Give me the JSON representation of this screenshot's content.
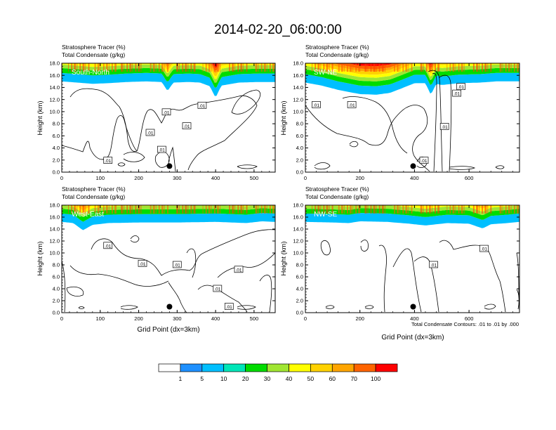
{
  "title": "2014-02-20_06:00:00",
  "chart_data": [
    {
      "type": "heatmap",
      "panel_label": "South-North",
      "header_lines": [
        "Stratosphere Tracer   (%)",
        "Total Condensate   (g/kg)"
      ],
      "ylabel": "Height (km)",
      "xlabel": "",
      "ylim": [
        0,
        18
      ],
      "xlim": [
        0,
        555
      ],
      "xticks": [
        0,
        100,
        200,
        300,
        400,
        500
      ],
      "yticks": [
        "0.0",
        "2.0",
        "4.0",
        "6.0",
        "8.0",
        "10.0",
        "12.0",
        "14.0",
        "16.0",
        "18.0"
      ],
      "tracer_band_bottom_km": [
        [
          0,
          15.0
        ],
        [
          40,
          14.8
        ],
        [
          80,
          14.6
        ],
        [
          120,
          14.7
        ],
        [
          170,
          14.9
        ],
        [
          220,
          15.0
        ],
        [
          260,
          14.9
        ],
        [
          275,
          13.4
        ],
        [
          290,
          14.8
        ],
        [
          330,
          14.9
        ],
        [
          360,
          14.8
        ],
        [
          385,
          14.2
        ],
        [
          400,
          12.3
        ],
        [
          415,
          14.3
        ],
        [
          460,
          14.8
        ],
        [
          510,
          14.9
        ],
        [
          555,
          14.9
        ]
      ],
      "contour_labels": [
        {
          "x": 120,
          "y": 1.9,
          "text": ".01"
        },
        {
          "x": 260,
          "y": 3.7,
          "text": ".01"
        },
        {
          "x": 230,
          "y": 6.5,
          "text": ".01"
        },
        {
          "x": 272,
          "y": 9.9,
          "text": ".01"
        },
        {
          "x": 365,
          "y": 11.0,
          "text": ".01"
        },
        {
          "x": 325,
          "y": 7.6,
          "text": ".01"
        }
      ],
      "marker": {
        "x": 280,
        "y": 1.0
      }
    },
    {
      "type": "heatmap",
      "panel_label": "SW-NE",
      "header_lines": [
        "Stratosphere Tracer   (%)",
        "Total Condensate   (g/kg)"
      ],
      "ylabel": "Height (km)",
      "xlabel": "",
      "ylim": [
        0,
        18
      ],
      "xlim": [
        0,
        785
      ],
      "xticks": [
        0,
        200,
        400,
        600
      ],
      "yticks": [
        "0.0",
        "2.0",
        "4.0",
        "6.0",
        "8.0",
        "10.0",
        "12.0",
        "14.0",
        "16.0",
        "18.0"
      ],
      "tracer_band_bottom_km": [
        [
          0,
          14.8
        ],
        [
          60,
          14.3
        ],
        [
          120,
          13.6
        ],
        [
          200,
          12.9
        ],
        [
          260,
          12.8
        ],
        [
          310,
          13.1
        ],
        [
          350,
          13.8
        ],
        [
          400,
          14.7
        ],
        [
          440,
          14.7
        ],
        [
          460,
          12.8
        ],
        [
          480,
          14.6
        ],
        [
          500,
          14.4
        ],
        [
          520,
          14.5
        ],
        [
          560,
          14.7
        ],
        [
          640,
          14.8
        ],
        [
          700,
          15.0
        ],
        [
          785,
          15.0
        ]
      ],
      "contour_labels": [
        {
          "x": 40,
          "y": 11.1,
          "text": ".01"
        },
        {
          "x": 170,
          "y": 11.1,
          "text": ".01"
        },
        {
          "x": 510,
          "y": 7.5,
          "text": ".01"
        },
        {
          "x": 555,
          "y": 13.0,
          "text": ".01"
        },
        {
          "x": 570,
          "y": 14.1,
          "text": ".01"
        },
        {
          "x": 435,
          "y": 1.9,
          "text": ".01"
        }
      ],
      "marker": {
        "x": 395,
        "y": 1.0
      }
    },
    {
      "type": "heatmap",
      "panel_label": "West-East",
      "header_lines": [
        "Stratosphere Tracer   (%)",
        "Total Condensate   (g/kg)"
      ],
      "ylabel": "Height (km)",
      "xlabel": "Grid Point (dx=3km)",
      "ylim": [
        0,
        18
      ],
      "xlim": [
        0,
        555
      ],
      "xticks": [
        0,
        100,
        200,
        300,
        400,
        500
      ],
      "yticks": [
        "0.0",
        "2.0",
        "4.0",
        "6.0",
        "8.0",
        "10.0",
        "12.0",
        "14.0",
        "16.0",
        "18.0"
      ],
      "tracer_band_bottom_km": [
        [
          0,
          15.2
        ],
        [
          30,
          15.0
        ],
        [
          55,
          13.8
        ],
        [
          80,
          14.7
        ],
        [
          120,
          15.0
        ],
        [
          200,
          15.1
        ],
        [
          300,
          15.1
        ],
        [
          400,
          15.2
        ],
        [
          480,
          15.0
        ],
        [
          520,
          15.3
        ],
        [
          555,
          15.2
        ]
      ],
      "contour_labels": [
        {
          "x": 120,
          "y": 11.2,
          "text": ".01"
        },
        {
          "x": 210,
          "y": 8.2,
          "text": ".01"
        },
        {
          "x": 300,
          "y": 8.0,
          "text": ".01"
        },
        {
          "x": 460,
          "y": 7.2,
          "text": ".01"
        },
        {
          "x": 405,
          "y": 4.0,
          "text": ".01"
        },
        {
          "x": 435,
          "y": 1.0,
          "text": ".01"
        }
      ],
      "marker": {
        "x": 280,
        "y": 1.0
      }
    },
    {
      "type": "heatmap",
      "panel_label": "NW-SE",
      "header_lines": [
        "Stratosphere Tracer   (%)",
        "Total Condensate   (g/kg)"
      ],
      "ylabel": "Height (km)",
      "xlabel": "Grid Point (dx=3km)",
      "ylim": [
        0,
        18
      ],
      "xlim": [
        0,
        785
      ],
      "xticks": [
        0,
        200,
        400,
        600
      ],
      "yticks": [
        "0.0",
        "2.0",
        "4.0",
        "6.0",
        "8.0",
        "10.0",
        "12.0",
        "14.0",
        "16.0",
        "18.0"
      ],
      "tracer_band_bottom_km": [
        [
          0,
          15.2
        ],
        [
          100,
          15.1
        ],
        [
          160,
          15.0
        ],
        [
          200,
          15.3
        ],
        [
          300,
          15.2
        ],
        [
          380,
          14.9
        ],
        [
          440,
          14.6
        ],
        [
          520,
          15.0
        ],
        [
          600,
          14.9
        ],
        [
          650,
          14.1
        ],
        [
          680,
          14.8
        ],
        [
          740,
          15.0
        ],
        [
          785,
          15.2
        ]
      ],
      "contour_labels": [
        {
          "x": 470,
          "y": 8.0,
          "text": ".01"
        },
        {
          "x": 655,
          "y": 10.7,
          "text": ".01"
        }
      ],
      "marker": {
        "x": 395,
        "y": 1.0
      }
    }
  ],
  "contour_info": "Total Condensate Contours: .01 to .01 by .000",
  "colorbar": {
    "levels": [
      "1",
      "5",
      "10",
      "20",
      "30",
      "40",
      "50",
      "60",
      "70",
      "100"
    ],
    "colors": [
      "#ffffff",
      "#1e90ff",
      "#00bfff",
      "#00e6b8",
      "#00dc00",
      "#a0e632",
      "#ffff00",
      "#ffd200",
      "#ffa500",
      "#ff6400",
      "#ff0000"
    ]
  }
}
